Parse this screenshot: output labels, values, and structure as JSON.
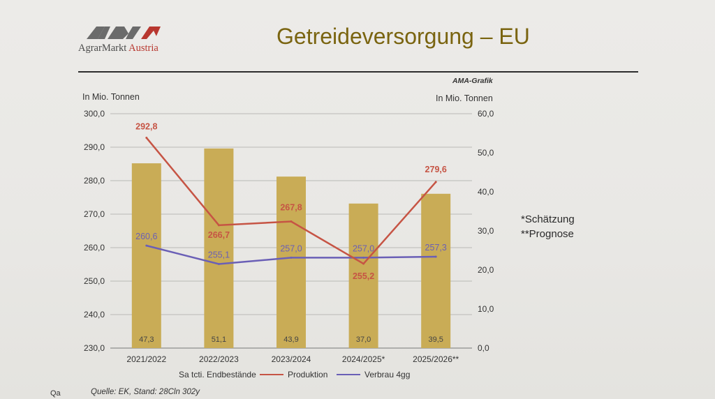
{
  "header": {
    "logo_text_1": "AgrarMarkt",
    "logo_text_2": "Austria",
    "title": "Getreideversorgung – EU",
    "credit": "AMA-Grafik"
  },
  "notes": [
    "*Schätzung",
    "**Prognose"
  ],
  "footer": {
    "source": "Quelle: EK, Stand: 28Cln     302y",
    "corner": "Qa"
  },
  "colors": {
    "bar": "#c9ac56",
    "production": "#c65444",
    "consumption": "#6a5fb6",
    "title": "#7a6410"
  },
  "chart_data": {
    "type": "bar+line",
    "categories": [
      "2021/2022",
      "2022/2023",
      "2023/2024",
      "2024/2025*",
      "2025/2026**"
    ],
    "y_left": {
      "label": "In Mio. Tonnen",
      "range": [
        230,
        300
      ],
      "ticks": [
        "230,0",
        "240,0",
        "250,0",
        "260,0",
        "270,0",
        "280,0",
        "290,0",
        "300,0"
      ]
    },
    "y_right": {
      "label": "In Mio. Tonnen",
      "range": [
        0,
        60
      ],
      "ticks": [
        "0,0",
        "10,0",
        "20,0",
        "30,0",
        "40,0",
        "50,0",
        "60,0"
      ]
    },
    "grid": true,
    "legend_position": "bottom",
    "series": [
      {
        "name": "Sa tcti. Endbestände",
        "kind": "bar",
        "axis": "right",
        "values": [
          47.3,
          51.1,
          43.9,
          37.0,
          39.5
        ],
        "labels": [
          "47,3",
          "51,1",
          "43,9",
          "37,0",
          "39,5"
        ]
      },
      {
        "name": "Produktion",
        "kind": "line",
        "axis": "left",
        "values": [
          292.8,
          266.7,
          267.8,
          255.2,
          279.6
        ],
        "labels": [
          "292,8",
          "266,7",
          "267,8",
          "255,2",
          "279,6"
        ]
      },
      {
        "name": "Verbrau 4gg",
        "kind": "line",
        "axis": "left",
        "values": [
          260.6,
          255.1,
          257.0,
          257.0,
          257.3
        ],
        "labels": [
          "260,6",
          "255,1",
          "257,0",
          "257,0",
          "257,3"
        ]
      }
    ]
  }
}
